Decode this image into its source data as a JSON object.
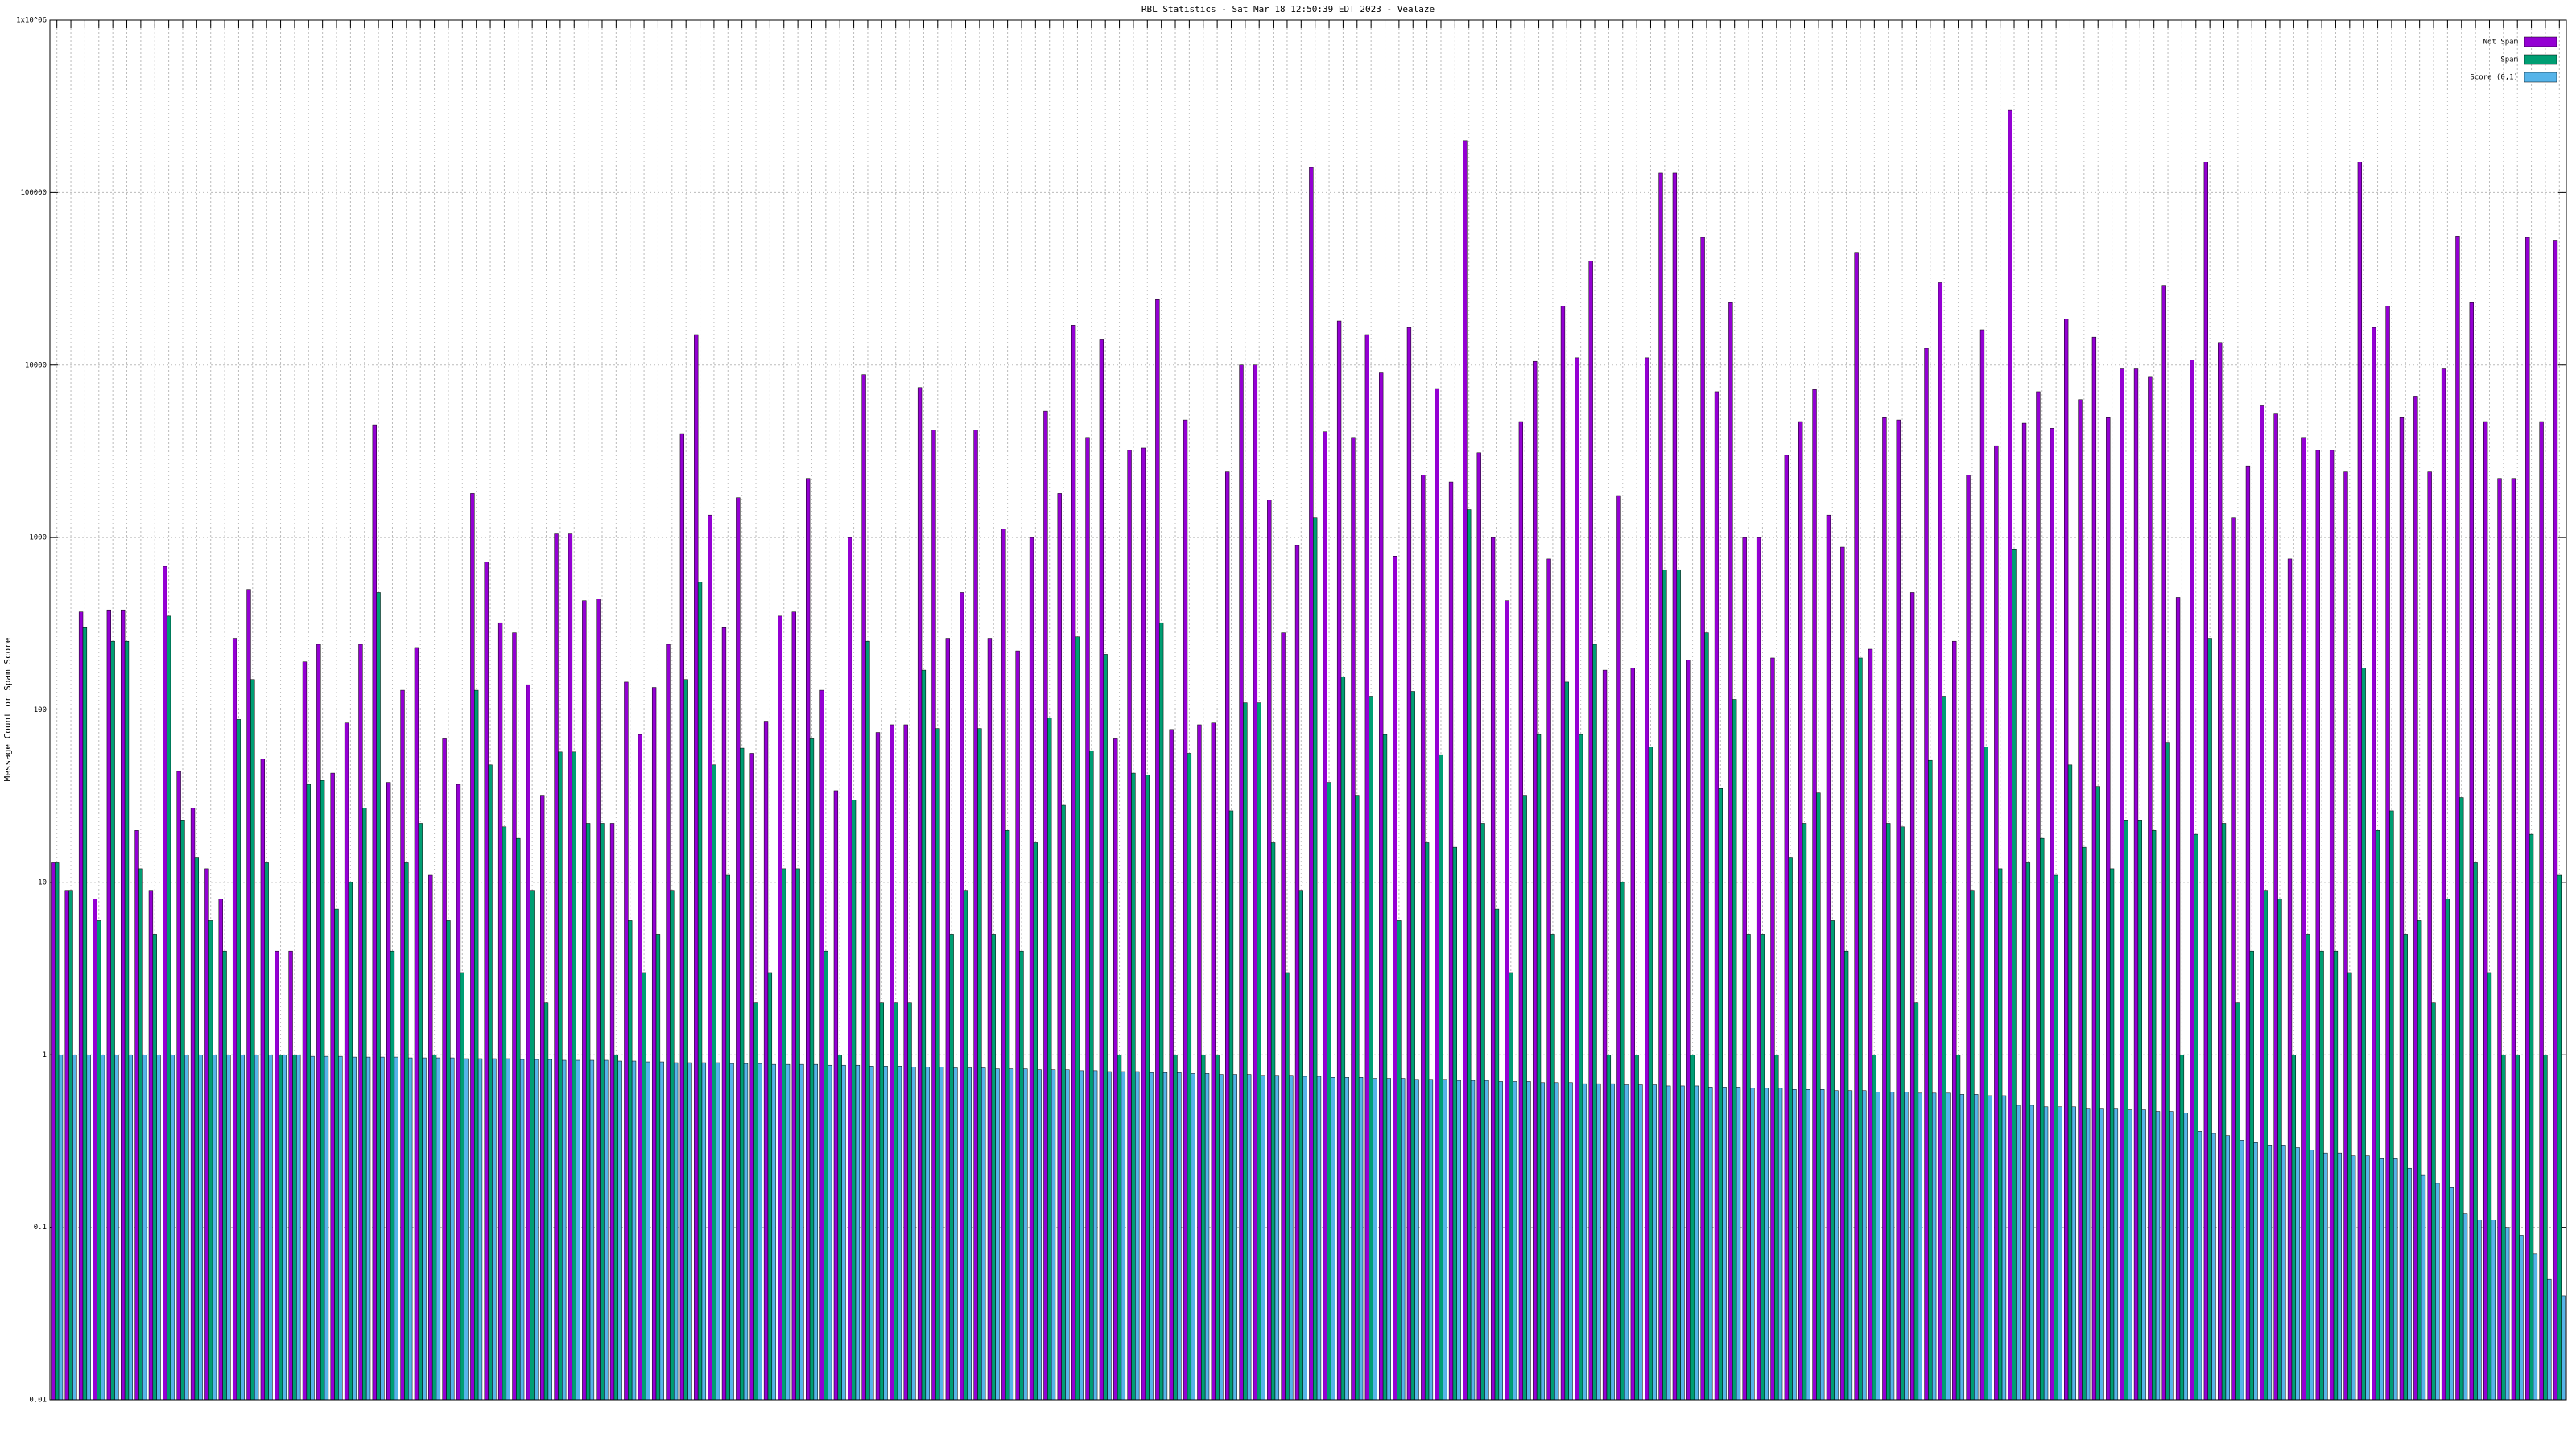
{
  "chart_data": {
    "type": "bar",
    "title": "RBL Statistics - Sat Mar 18 12:50:39 EDT 2023 - Vealaze",
    "y_label": "Message Count or Spam Score",
    "log_scale": true,
    "grid": true,
    "legend": "top-right",
    "ylim": [
      0.01,
      1000000
    ],
    "yticks": [
      0.01,
      0.1,
      1,
      10,
      100,
      1000,
      10000,
      100000,
      {
        "value": 1000000,
        "label": "1x10^06"
      }
    ],
    "categories": [
      null,
      null,
      null,
      null,
      null,
      null,
      null,
      null,
      null,
      null,
      null,
      null,
      null,
      null,
      null,
      null,
      null,
      null,
      null,
      null,
      null,
      null,
      null,
      null,
      null,
      null,
      null,
      null,
      null,
      null,
      null,
      null,
      null,
      null,
      null,
      null,
      null,
      null,
      null,
      null,
      null,
      null,
      null,
      null,
      null,
      null,
      null,
      null,
      null,
      null,
      null,
      null,
      null,
      null,
      null,
      null,
      null,
      null,
      null,
      null,
      null,
      null,
      null,
      null,
      null,
      null,
      null,
      null,
      null,
      null,
      null,
      null,
      null,
      null,
      null,
      null,
      null,
      null,
      null,
      null,
      null,
      null,
      null,
      null,
      null,
      null,
      null,
      null,
      null,
      null,
      null,
      null,
      null,
      null,
      null,
      null,
      null,
      null,
      null,
      null,
      null,
      null,
      null,
      null,
      null,
      null,
      null,
      null,
      null,
      null,
      null,
      null,
      null,
      null,
      null,
      null,
      null,
      null,
      null,
      null,
      null,
      null,
      null,
      null,
      null,
      null,
      null,
      null,
      null,
      null,
      null,
      null,
      null,
      null,
      null,
      null,
      null,
      null,
      null,
      null,
      null,
      null,
      null,
      null,
      null,
      null,
      null,
      null,
      null,
      null,
      null,
      null,
      null,
      null,
      null,
      null,
      null,
      null,
      null,
      null,
      null,
      null,
      null,
      null,
      null,
      null,
      null,
      null,
      null,
      null,
      null,
      null,
      null,
      null,
      null,
      null,
      null,
      null,
      null,
      null
    ],
    "series": [
      {
        "name": "Not Spam",
        "color": "#9400d3",
        "values": [
          13,
          9,
          370,
          8,
          380,
          380,
          20,
          9,
          680,
          44,
          27,
          12,
          8,
          260,
          500,
          52,
          4,
          4,
          190,
          240,
          43,
          84,
          240,
          4500,
          38,
          130,
          230,
          11,
          68,
          37,
          1800,
          720,
          320,
          280,
          140,
          32,
          1050,
          1050,
          430,
          440,
          22,
          145,
          72,
          135,
          240,
          4000,
          15000,
          1350,
          300,
          1700,
          56,
          86,
          350,
          370,
          2200,
          130,
          34,
          1000,
          8800,
          74,
          82,
          82,
          7400,
          4200,
          260,
          480,
          4200,
          260,
          1120,
          220,
          1000,
          5400,
          1800,
          17000,
          3800,
          14000,
          68,
          3200,
          3300,
          24000,
          77,
          4800,
          82,
          84,
          2400,
          10000,
          10000,
          1650,
          280,
          900,
          140000,
          4100,
          18000,
          3800,
          15000,
          9000,
          780,
          16500,
          2300,
          7300,
          2100,
          200000,
          3100,
          1000,
          430,
          4700,
          10500,
          750,
          22000,
          11000,
          40000,
          170,
          1750,
          175,
          11000,
          130000,
          130000,
          195,
          55000,
          7000,
          23000,
          1000,
          1000,
          200,
          3000,
          4700,
          7200,
          1350,
          880,
          45000,
          225,
          5000,
          4800,
          480,
          12500,
          30000,
          250,
          2300,
          16000,
          3400,
          300000,
          4600,
          7000,
          4300,
          18500,
          6300,
          14500,
          5000,
          9500,
          9500,
          8500,
          29000,
          450,
          10700,
          150000,
          13500,
          1300,
          2600,
          5800,
          5200,
          750,
          3800,
          3200,
          3200,
          2400,
          150000,
          16500,
          22000,
          5000,
          6600,
          2400,
          9500,
          56000,
          23000,
          4700,
          2200,
          2200,
          55000,
          4700,
          53000
        ]
      },
      {
        "name": "Spam",
        "color": "#009e73",
        "values": [
          13,
          9,
          300,
          6,
          250,
          250,
          12,
          5,
          350,
          23,
          14,
          6,
          4,
          88,
          150,
          13,
          1,
          1,
          37,
          39,
          7,
          10,
          27,
          480,
          4,
          13,
          22,
          1,
          6,
          3,
          130,
          48,
          21,
          18,
          9,
          2,
          57,
          57,
          22,
          22,
          1,
          6,
          3,
          5,
          9,
          150,
          550,
          48,
          11,
          60,
          2,
          3,
          12,
          12,
          68,
          4,
          1,
          30,
          250,
          2,
          2,
          2,
          170,
          78,
          5,
          9,
          78,
          5,
          20,
          4,
          17,
          90,
          28,
          265,
          58,
          210,
          1,
          43,
          42,
          320,
          1,
          56,
          1,
          1,
          26,
          110,
          110,
          17,
          3,
          9,
          1300,
          38,
          155,
          32,
          120,
          72,
          6,
          128,
          17,
          55,
          16,
          1450,
          22,
          7,
          3,
          32,
          72,
          5,
          145,
          72,
          240,
          1,
          10,
          1,
          61,
          650,
          650,
          1,
          280,
          35,
          115,
          5,
          5,
          1,
          14,
          22,
          33,
          6,
          4,
          200,
          1,
          22,
          21,
          2,
          51,
          120,
          1,
          9,
          61,
          12,
          850,
          13,
          18,
          11,
          48,
          16,
          36,
          12,
          23,
          23,
          20,
          65,
          1,
          19,
          260,
          22,
          2,
          4,
          9,
          8,
          1,
          5,
          4,
          4,
          3,
          175,
          20,
          26,
          5,
          6,
          2,
          8,
          31,
          13,
          3,
          1,
          1,
          19,
          1,
          11
        ]
      },
      {
        "name": "Score (0,1)",
        "color": "#56b4e9",
        "values": [
          1,
          1,
          1,
          1,
          1,
          1,
          1,
          1,
          1,
          1,
          1,
          1,
          1,
          1,
          1,
          1,
          1,
          1,
          0.98,
          0.98,
          0.98,
          0.97,
          0.97,
          0.97,
          0.97,
          0.96,
          0.96,
          0.96,
          0.96,
          0.95,
          0.95,
          0.95,
          0.95,
          0.94,
          0.94,
          0.94,
          0.93,
          0.93,
          0.93,
          0.93,
          0.92,
          0.92,
          0.91,
          0.91,
          0.9,
          0.9,
          0.9,
          0.9,
          0.89,
          0.89,
          0.89,
          0.88,
          0.88,
          0.88,
          0.88,
          0.87,
          0.87,
          0.87,
          0.86,
          0.86,
          0.86,
          0.85,
          0.85,
          0.85,
          0.84,
          0.84,
          0.84,
          0.83,
          0.83,
          0.83,
          0.82,
          0.82,
          0.82,
          0.81,
          0.81,
          0.8,
          0.8,
          0.8,
          0.79,
          0.79,
          0.79,
          0.78,
          0.78,
          0.77,
          0.77,
          0.77,
          0.76,
          0.76,
          0.76,
          0.75,
          0.75,
          0.74,
          0.74,
          0.74,
          0.73,
          0.73,
          0.73,
          0.72,
          0.72,
          0.72,
          0.71,
          0.71,
          0.71,
          0.7,
          0.7,
          0.7,
          0.69,
          0.69,
          0.69,
          0.68,
          0.68,
          0.68,
          0.67,
          0.67,
          0.67,
          0.66,
          0.66,
          0.66,
          0.65,
          0.65,
          0.65,
          0.64,
          0.64,
          0.64,
          0.63,
          0.63,
          0.63,
          0.62,
          0.62,
          0.62,
          0.61,
          0.61,
          0.61,
          0.6,
          0.6,
          0.6,
          0.59,
          0.59,
          0.58,
          0.58,
          0.51,
          0.51,
          0.5,
          0.5,
          0.5,
          0.49,
          0.49,
          0.49,
          0.48,
          0.48,
          0.47,
          0.47,
          0.46,
          0.36,
          0.35,
          0.34,
          0.32,
          0.31,
          0.3,
          0.3,
          0.29,
          0.28,
          0.27,
          0.27,
          0.26,
          0.26,
          0.25,
          0.25,
          0.22,
          0.2,
          0.18,
          0.17,
          0.12,
          0.11,
          0.11,
          0.1,
          0.09,
          0.07,
          0.05,
          0.04
        ]
      }
    ]
  }
}
